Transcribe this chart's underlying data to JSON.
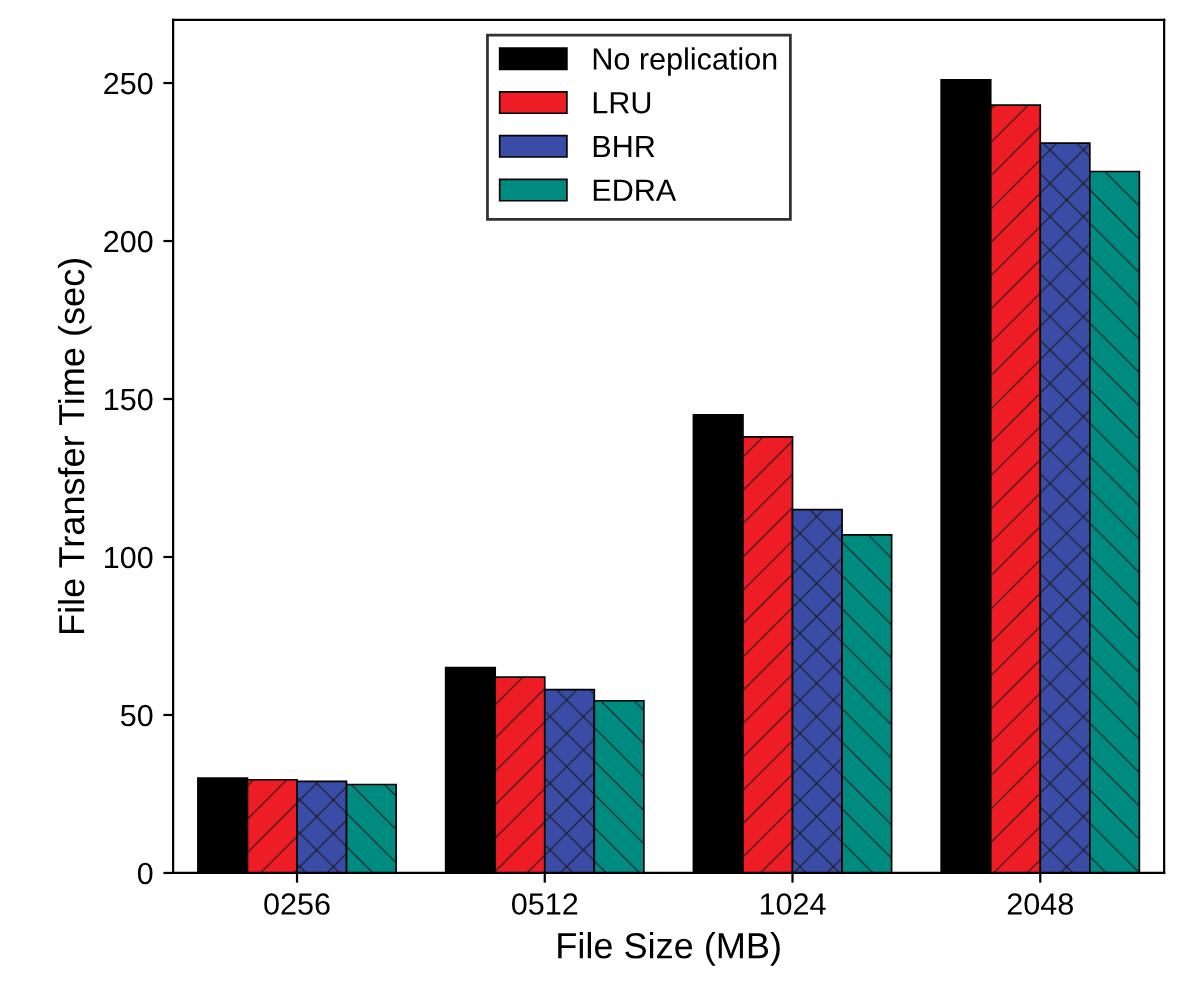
{
  "chart_data": {
    "type": "bar",
    "xlabel": "File Size (MB)",
    "ylabel": "File Transfer Time (sec)",
    "categories": [
      "0256",
      "0512",
      "1024",
      "2048"
    ],
    "series": [
      {
        "name": "No replication",
        "color": "#000000",
        "values": [
          30,
          65,
          145,
          251
        ]
      },
      {
        "name": "LRU",
        "color": "#ee1c24",
        "values": [
          29.5,
          62,
          138,
          243
        ]
      },
      {
        "name": "BHR",
        "color": "#3a4ca6",
        "values": [
          29,
          58,
          115,
          231
        ]
      },
      {
        "name": "EDRA",
        "color": "#008b80",
        "values": [
          28,
          54.5,
          107,
          222
        ]
      }
    ],
    "ylim": [
      0,
      270
    ],
    "yticks": [
      0,
      50,
      100,
      150,
      200,
      250
    ],
    "grid": false,
    "legend": "top"
  }
}
